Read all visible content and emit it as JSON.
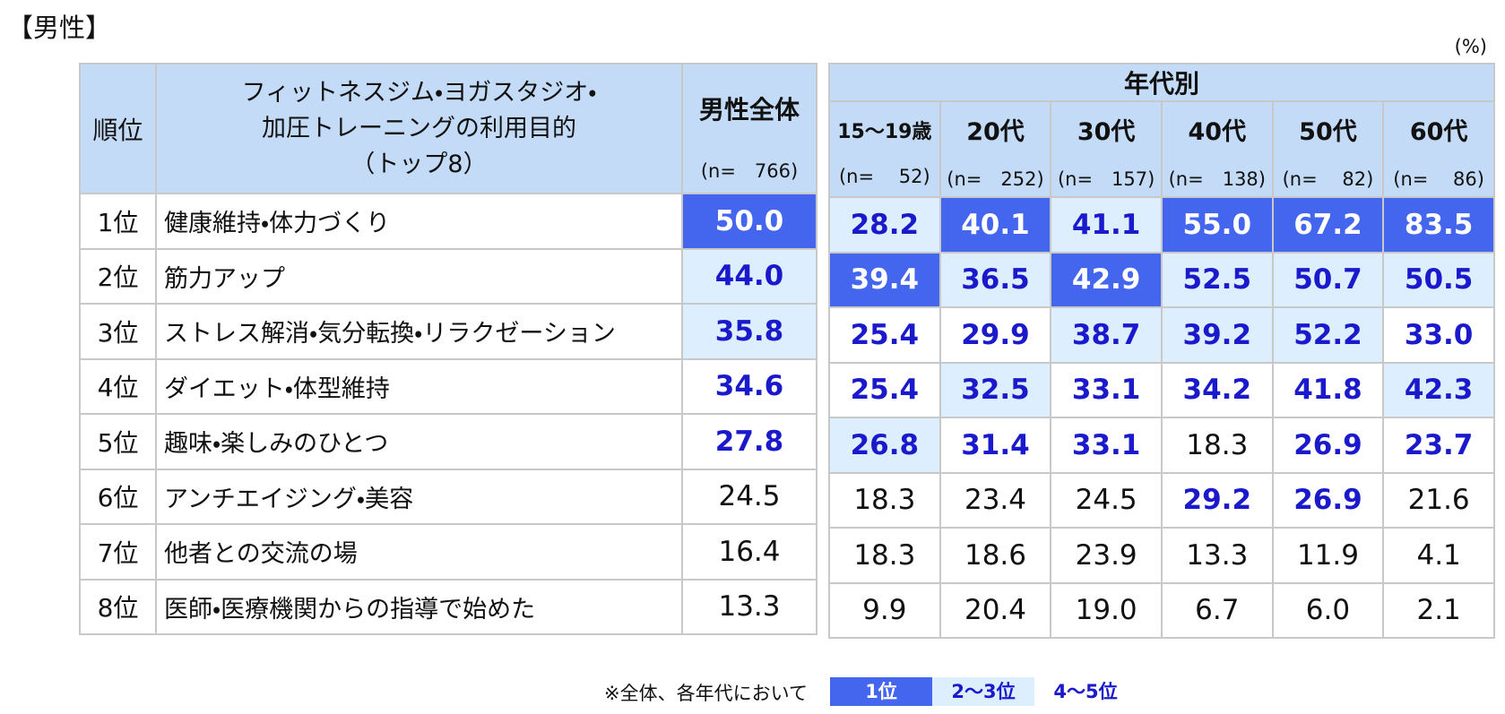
{
  "title": "【男性】",
  "unit": "(%)",
  "table": {
    "header": {
      "rank": "順位",
      "purpose": [
        "フィットネスジム・ヨガスタジオ・",
        "加圧トレーニングの利用目的",
        "（トップ8）"
      ],
      "overall": {
        "name": "男性全体",
        "n": "(n=　766)"
      },
      "age_group": "年代別",
      "ages": [
        {
          "name": "15～19歳",
          "n": "(n=　 52)"
        },
        {
          "name": "20代",
          "n": "(n=　252)"
        },
        {
          "name": "30代",
          "n": "(n=　157)"
        },
        {
          "name": "40代",
          "n": "(n=　138)"
        },
        {
          "name": "50代",
          "n": "(n=　 82)"
        },
        {
          "name": "60代",
          "n": "(n=　 86)"
        }
      ]
    },
    "rows": [
      {
        "rank": "1位",
        "label": "健康維持・体力づくり",
        "values": [
          "50.0",
          "28.2",
          "40.1",
          "41.1",
          "55.0",
          "67.2",
          "83.5"
        ]
      },
      {
        "rank": "2位",
        "label": "筋力アップ",
        "values": [
          "44.0",
          "39.4",
          "36.5",
          "42.9",
          "52.5",
          "50.7",
          "50.5"
        ]
      },
      {
        "rank": "3位",
        "label": "ストレス解消・気分転換・リラクゼーション",
        "values": [
          "35.8",
          "25.4",
          "29.9",
          "38.7",
          "39.2",
          "52.2",
          "33.0"
        ]
      },
      {
        "rank": "4位",
        "label": "ダイエット・体型維持",
        "values": [
          "34.6",
          "25.4",
          "32.5",
          "33.1",
          "34.2",
          "41.8",
          "42.3"
        ]
      },
      {
        "rank": "5位",
        "label": "趣味・楽しみのひとつ",
        "values": [
          "27.8",
          "26.8",
          "31.4",
          "33.1",
          "18.3",
          "26.9",
          "23.7"
        ]
      },
      {
        "rank": "6位",
        "label": "アンチエイジング・美容",
        "values": [
          "24.5",
          "18.3",
          "23.4",
          "24.5",
          "29.2",
          "26.9",
          "21.6"
        ]
      },
      {
        "rank": "7位",
        "label": "他者との交流の場",
        "values": [
          "16.4",
          "18.3",
          "18.6",
          "23.9",
          "13.3",
          "11.9",
          "4.1"
        ]
      },
      {
        "rank": "8位",
        "label": "医師・医療機関からの指導で始めた",
        "values": [
          "13.3",
          "9.9",
          "20.4",
          "19.0",
          "6.7",
          "6.0",
          "2.1"
        ]
      }
    ]
  },
  "note": "※全体、各年代において",
  "legend": [
    {
      "label": "1位",
      "fill": "#4466ee",
      "color": "#ffffff"
    },
    {
      "label": "2～3位",
      "fill": "#ddeeff",
      "color": "#1a1acc"
    },
    {
      "label": "4～5位",
      "fill": "none",
      "color": "#1a1acc"
    }
  ]
}
